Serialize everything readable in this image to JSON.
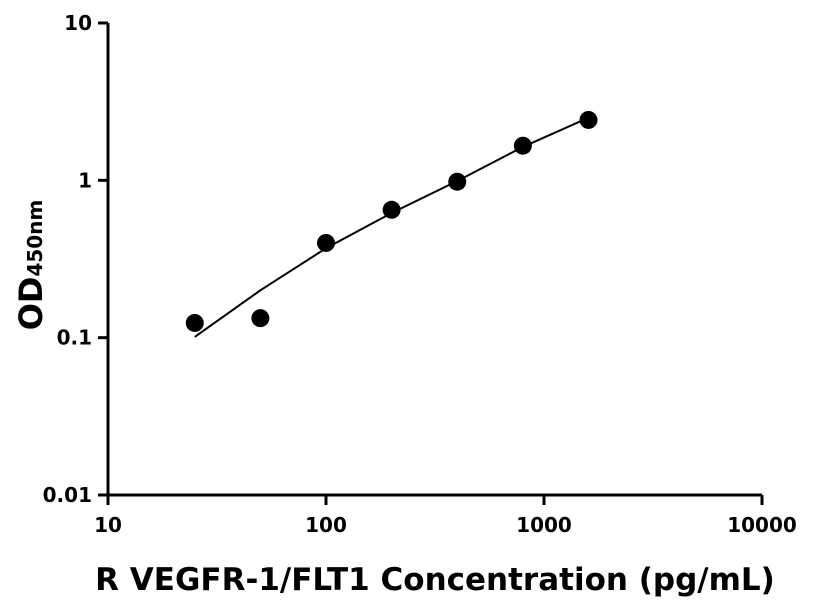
{
  "chart_data": {
    "type": "scatter",
    "x_label": "R VEGFR-1/FLT1 Concentration (pg/mL)",
    "y_label": "OD",
    "y_label_subscript": "450nm",
    "x": [
      25,
      50,
      100,
      200,
      400,
      800,
      1600
    ],
    "values": [
      0.124,
      0.133,
      0.4,
      0.65,
      0.98,
      1.66,
      2.42
    ],
    "fit": {
      "x": [
        25,
        50,
        100,
        200,
        400,
        800,
        1600
      ],
      "values": [
        0.101,
        0.2,
        0.37,
        0.62,
        0.99,
        1.63,
        2.5
      ]
    },
    "color": "#000000",
    "log_x": true,
    "log_y": true,
    "xlim": [
      10,
      10000
    ],
    "xticks": [
      10,
      100,
      1000,
      10000
    ],
    "ylim": [
      0.01,
      10
    ],
    "yticks": [
      0.01,
      0.1,
      1,
      10
    ]
  }
}
